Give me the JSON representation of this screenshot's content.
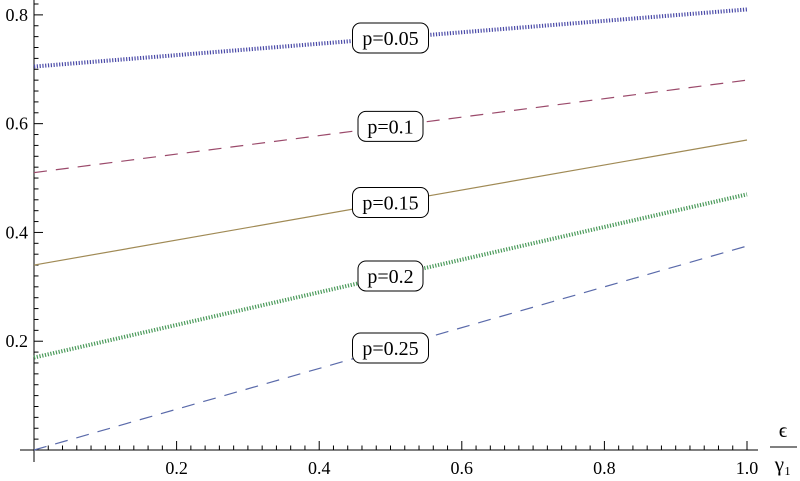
{
  "chart_data": {
    "type": "line",
    "title": "",
    "xlabel_numerator": "ϵ",
    "xlabel_denominator": "γ₁",
    "ylabel": "",
    "xlim": [
      0,
      1.0
    ],
    "ylim": [
      0,
      0.8
    ],
    "x_ticks": [
      "0.2",
      "0.4",
      "0.6",
      "0.8",
      "1.0"
    ],
    "y_ticks": [
      "0.2",
      "0.4",
      "0.6",
      "0.8"
    ],
    "grid": false,
    "series": [
      {
        "name": "p=0.05",
        "x": [
          0,
          1.0
        ],
        "y": [
          0.705,
          0.81
        ],
        "color": "#4b4ba8",
        "style": "dotted",
        "label_x": 0.5
      },
      {
        "name": "p=0.1",
        "x": [
          0,
          1.0
        ],
        "y": [
          0.51,
          0.68
        ],
        "color": "#9b4a6b",
        "style": "dashed",
        "label_x": 0.5
      },
      {
        "name": "p=0.15",
        "x": [
          0,
          1.0
        ],
        "y": [
          0.34,
          0.57
        ],
        "color": "#a08a55",
        "style": "solid",
        "label_x": 0.5
      },
      {
        "name": "p=0.2",
        "x": [
          0,
          1.0
        ],
        "y": [
          0.17,
          0.47
        ],
        "color": "#4a9a5a",
        "style": "dotted",
        "label_x": 0.5
      },
      {
        "name": "p=0.25",
        "x": [
          0,
          1.0
        ],
        "y": [
          0.0,
          0.375
        ],
        "color": "#5a6aaa",
        "style": "dashed",
        "label_x": 0.5
      }
    ]
  }
}
